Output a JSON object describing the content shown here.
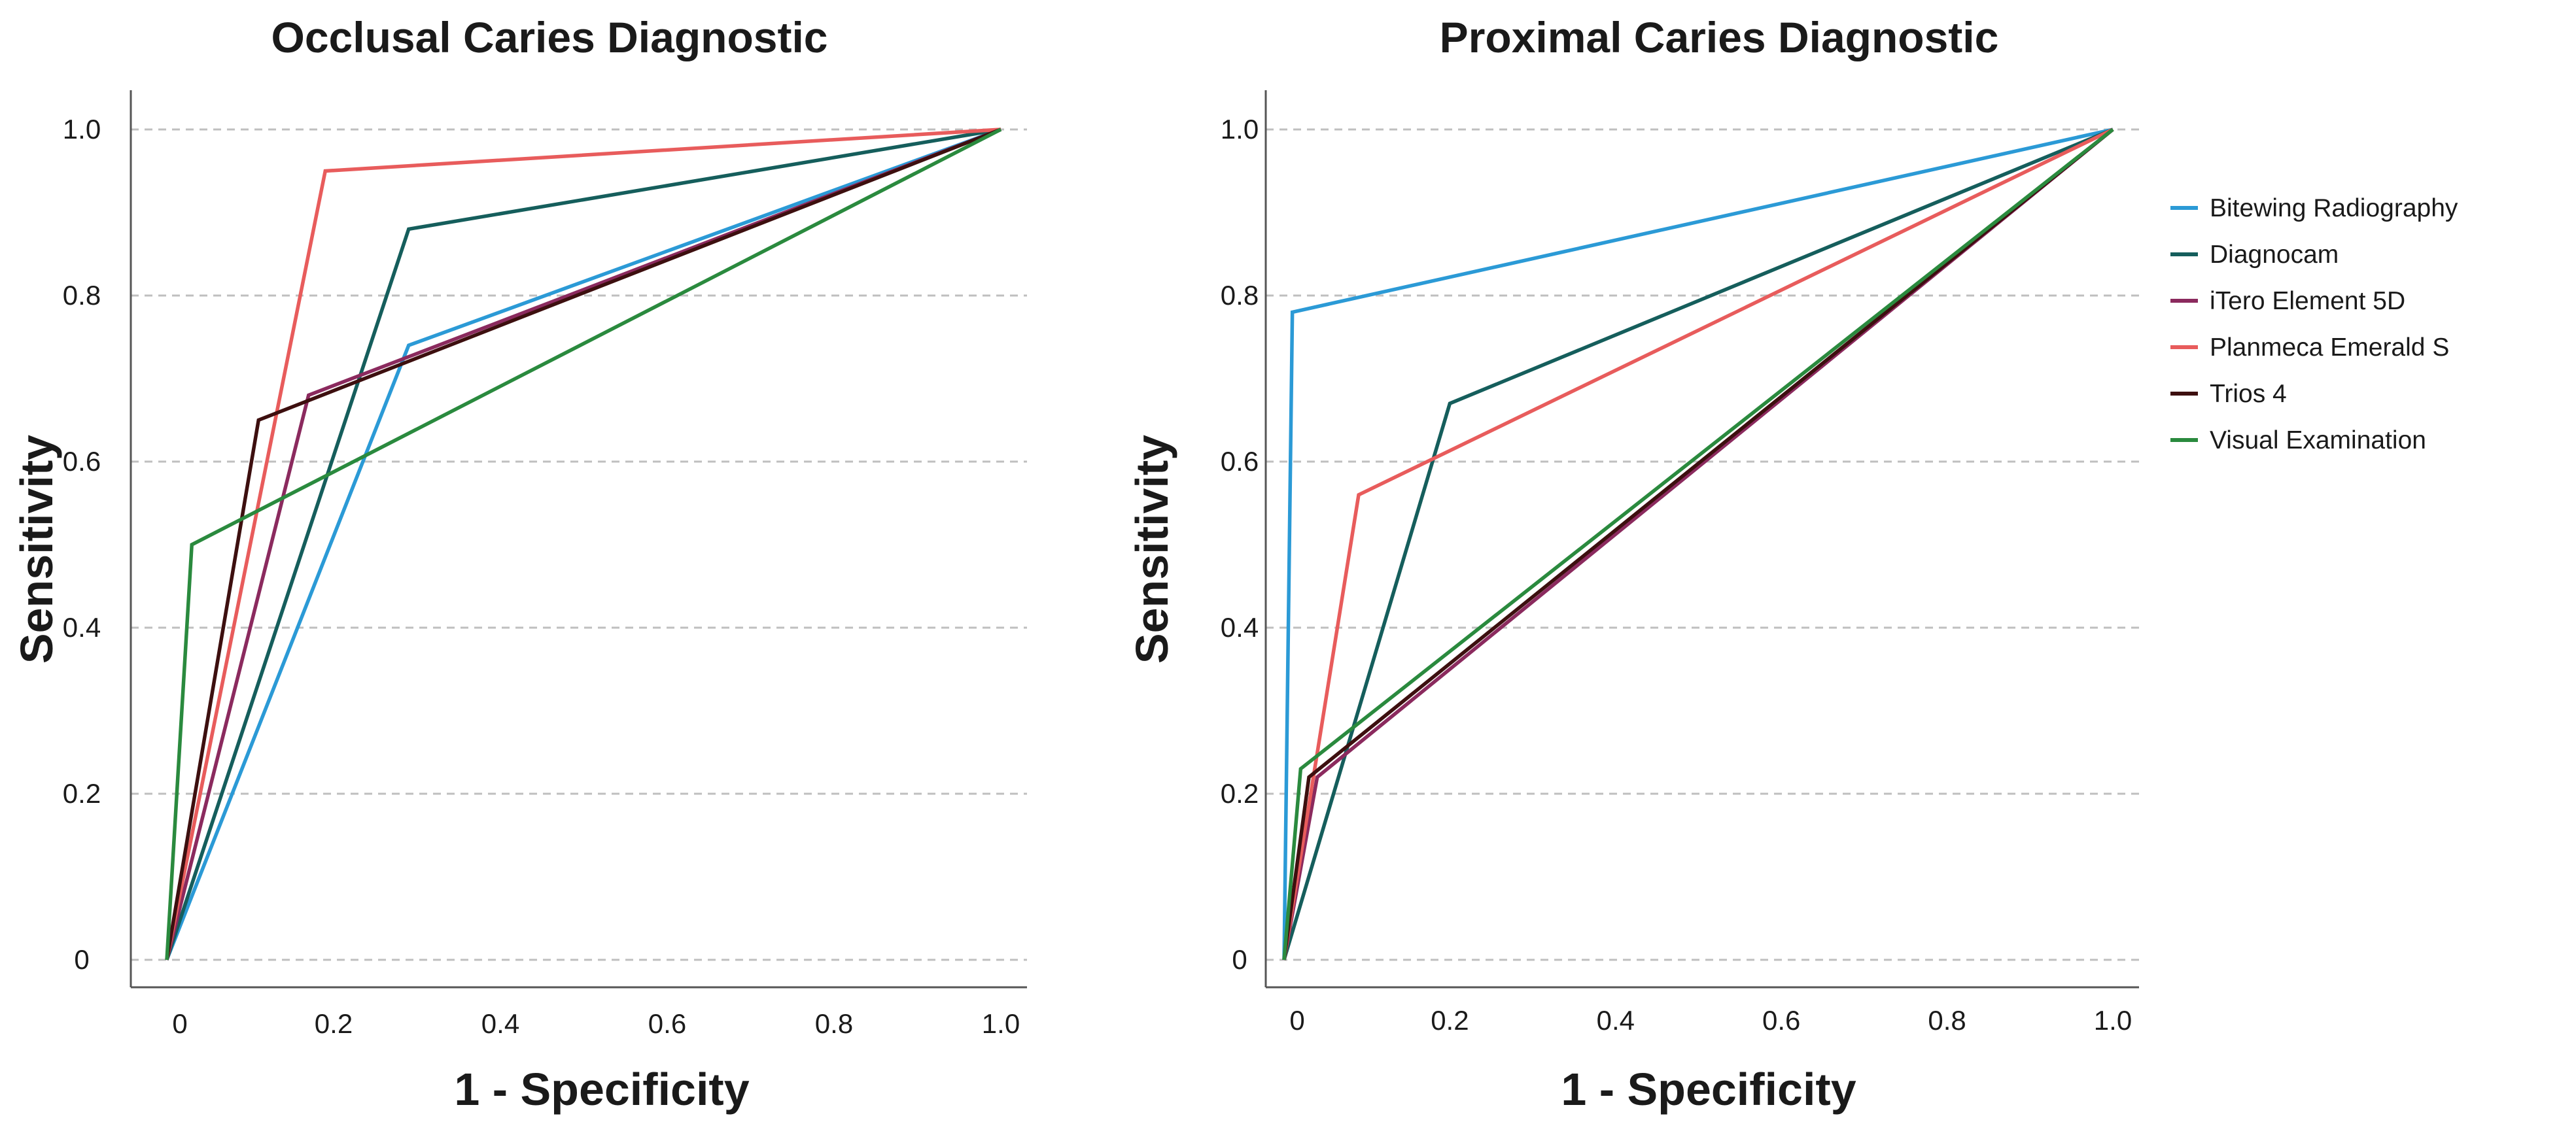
{
  "chart_data": [
    {
      "type": "line",
      "title": "Occlusal Caries Diagnostic",
      "xlabel": "1 - Specificity",
      "ylabel": "Sensitivity",
      "xlim": [
        0,
        1
      ],
      "ylim": [
        0,
        1
      ],
      "grid": "horizontal dashed",
      "x_ticks": [
        "0",
        "0.2",
        "0.4",
        "0.6",
        "0.8",
        "1.0"
      ],
      "y_ticks": [
        "0",
        "0.2",
        "0.4",
        "0.6",
        "0.8",
        "1.0"
      ],
      "series": [
        {
          "name": "Bitewing Radiography",
          "color": "#2b9ad6",
          "x": [
            0,
            0.29,
            1
          ],
          "y": [
            0,
            0.74,
            1
          ]
        },
        {
          "name": "Diagnocam",
          "color": "#155e5c",
          "x": [
            0,
            0.29,
            1
          ],
          "y": [
            0,
            0.88,
            1
          ]
        },
        {
          "name": "iTero Element 5D",
          "color": "#8b2a5e",
          "x": [
            0,
            0.17,
            1
          ],
          "y": [
            0,
            0.68,
            1
          ]
        },
        {
          "name": "Planmeca Emerald S",
          "color": "#e85c5c",
          "x": [
            0,
            0.19,
            1
          ],
          "y": [
            0,
            0.95,
            1
          ]
        },
        {
          "name": "Trios 4",
          "color": "#3d0f0f",
          "x": [
            0,
            0.11,
            1
          ],
          "y": [
            0,
            0.65,
            1
          ]
        },
        {
          "name": "Visual Examination",
          "color": "#2a8a3e",
          "x": [
            0,
            0.03,
            1
          ],
          "y": [
            0,
            0.5,
            1
          ]
        }
      ]
    },
    {
      "type": "line",
      "title": "Proximal Caries Diagnostic",
      "xlabel": "1 - Specificity",
      "ylabel": "Sensitivity",
      "xlim": [
        0,
        1
      ],
      "ylim": [
        0,
        1
      ],
      "grid": "horizontal dashed",
      "legend": "right",
      "x_ticks": [
        "0",
        "0.2",
        "0.4",
        "0.6",
        "0.8",
        "1.0"
      ],
      "y_ticks": [
        "0",
        "0.2",
        "0.4",
        "0.6",
        "0.8",
        "1.0"
      ],
      "series": [
        {
          "name": "Bitewing Radiography",
          "color": "#2b9ad6",
          "x": [
            0,
            0.01,
            1
          ],
          "y": [
            0,
            0.78,
            1
          ]
        },
        {
          "name": "Diagnocam",
          "color": "#155e5c",
          "x": [
            0,
            0.2,
            1
          ],
          "y": [
            0,
            0.67,
            1
          ]
        },
        {
          "name": "iTero Element 5D",
          "color": "#8b2a5e",
          "x": [
            0,
            0.04,
            1
          ],
          "y": [
            0,
            0.22,
            1
          ]
        },
        {
          "name": "Planmeca Emerald S",
          "color": "#e85c5c",
          "x": [
            0,
            0.09,
            1
          ],
          "y": [
            0,
            0.56,
            1
          ]
        },
        {
          "name": "Trios 4",
          "color": "#3d0f0f",
          "x": [
            0,
            0.03,
            1
          ],
          "y": [
            0,
            0.22,
            1
          ]
        },
        {
          "name": "Visual Examination",
          "color": "#2a8a3e",
          "x": [
            0,
            0.02,
            1
          ],
          "y": [
            0,
            0.23,
            1
          ]
        }
      ]
    }
  ]
}
